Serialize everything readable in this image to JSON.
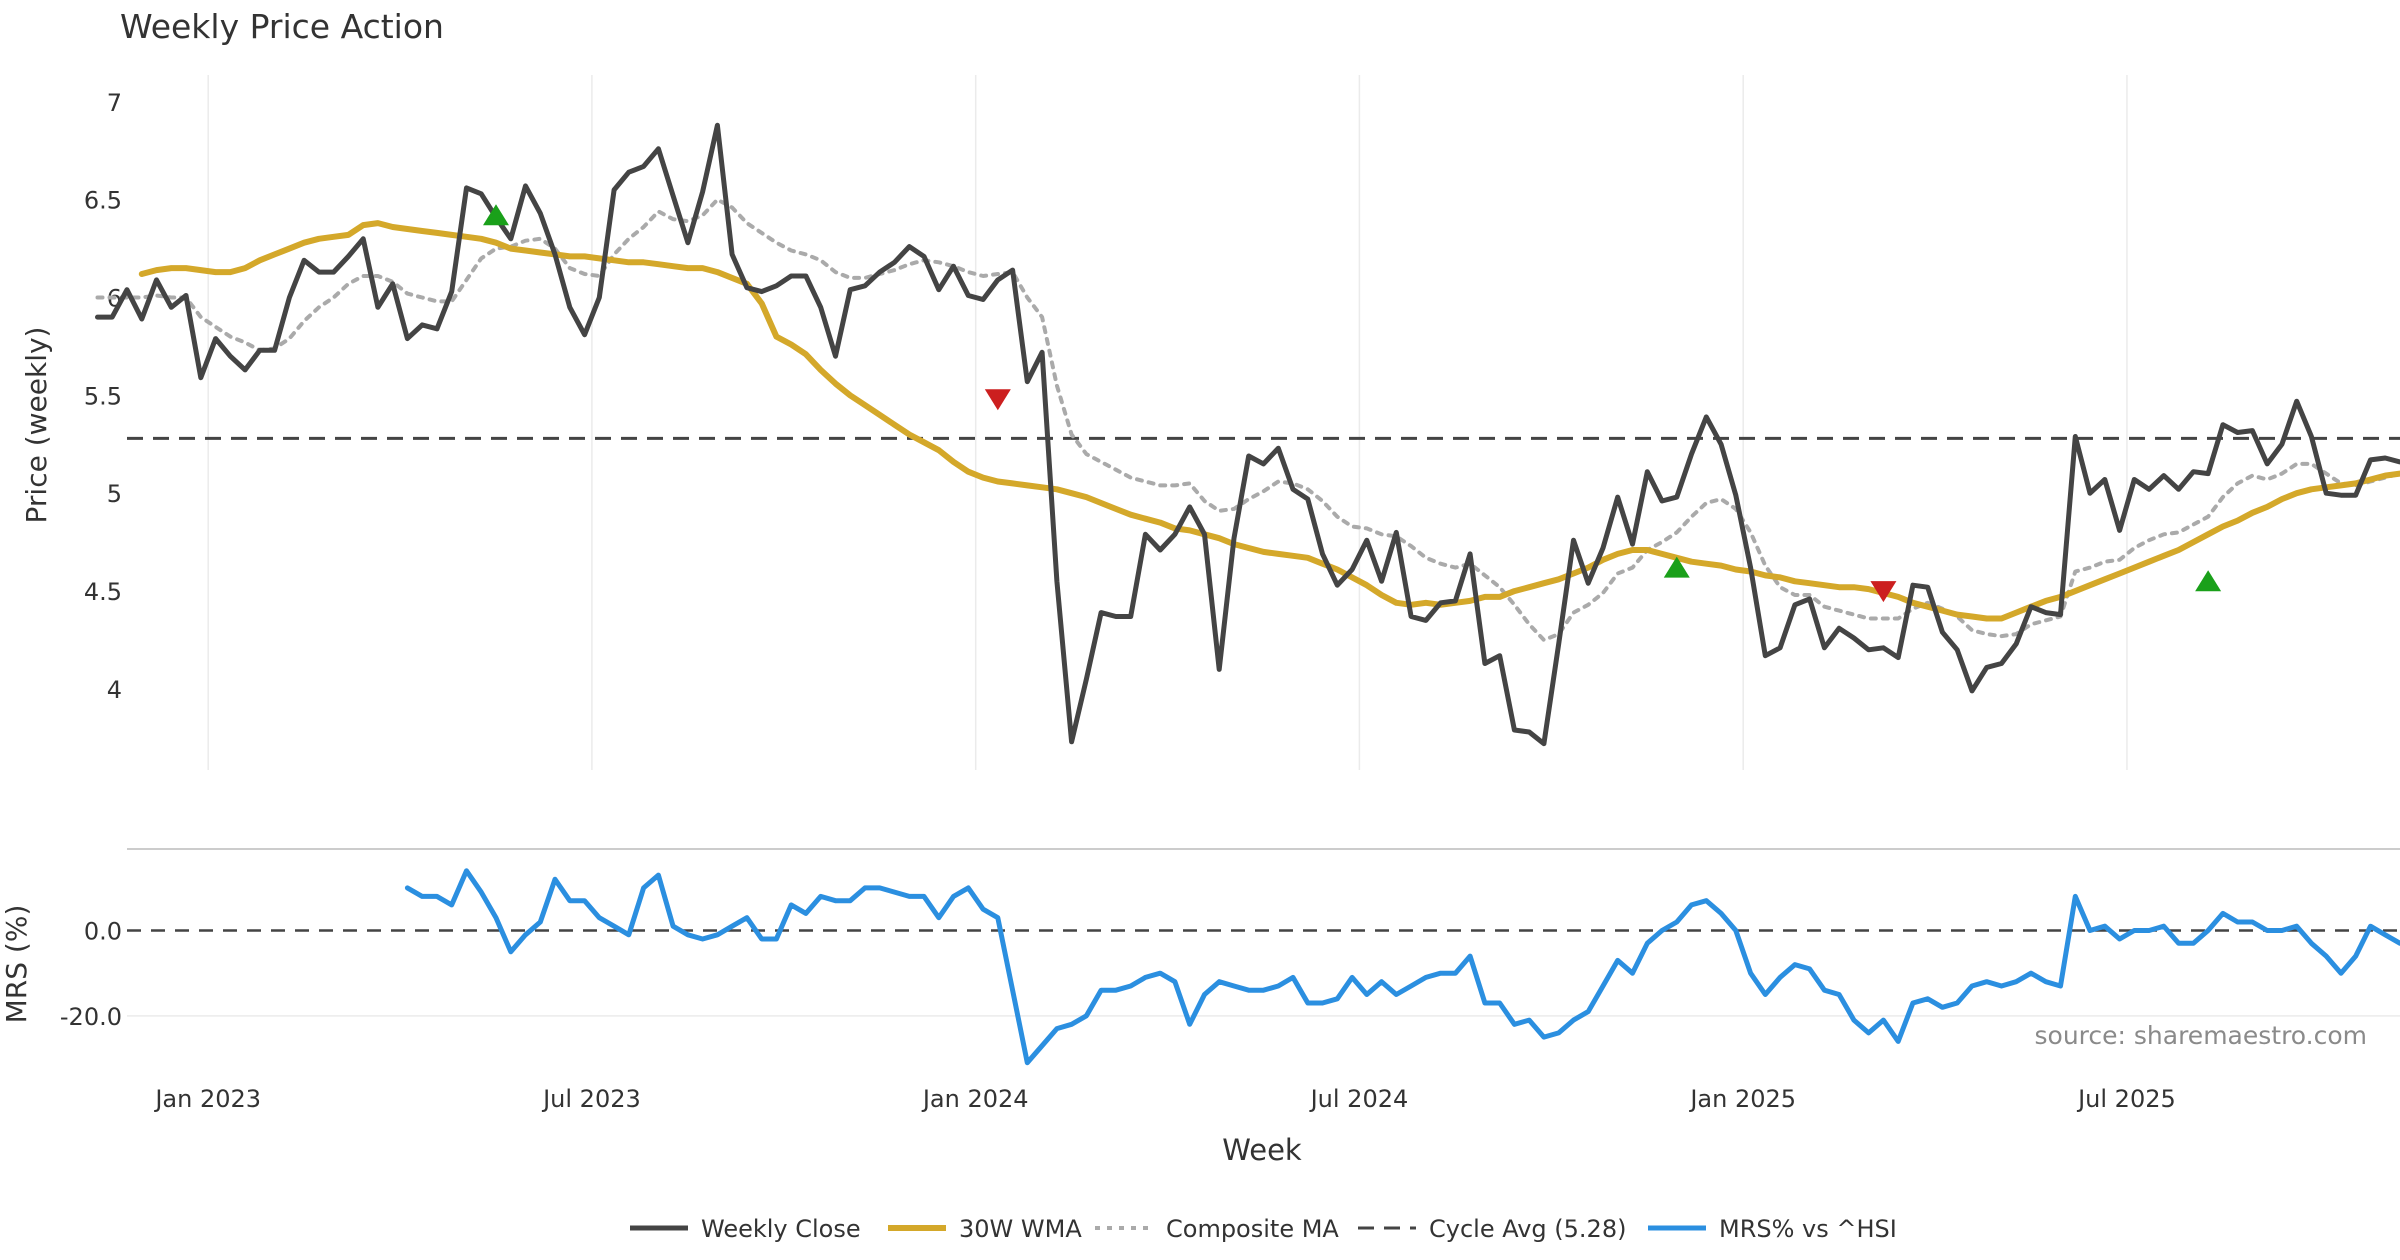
{
  "chart_data": {
    "type": "line",
    "title": "Weekly Price Action",
    "xlabel": "Week",
    "source_note": "source: sharemaestro.com",
    "x_ticks": [
      "Jan 2023",
      "Jul 2023",
      "Jan 2024",
      "Jul 2024",
      "Jan 2025",
      "Jul 2025"
    ],
    "price_panel": {
      "ylabel": "Price (weekly)",
      "y_ticks": [
        "4",
        "4.5",
        "5",
        "5.5",
        "6",
        "6.5",
        "7"
      ],
      "ylim": [
        3.55,
        7.05
      ],
      "cycle_avg": 5.28,
      "series": [
        {
          "name": "Weekly Close",
          "color": "#444444",
          "values": [
            5.9,
            5.9,
            6.04,
            5.89,
            6.09,
            5.95,
            6.01,
            5.59,
            5.79,
            5.7,
            5.63,
            5.73,
            5.73,
            6.0,
            6.19,
            6.13,
            6.13,
            6.21,
            6.3,
            5.95,
            6.07,
            5.79,
            5.86,
            5.84,
            6.03,
            6.56,
            6.53,
            6.41,
            6.3,
            6.57,
            6.43,
            6.22,
            5.95,
            5.81,
            6.0,
            6.55,
            6.64,
            6.67,
            6.76,
            6.52,
            6.28,
            6.54,
            6.88,
            6.22,
            6.05,
            6.03,
            6.06,
            6.11,
            6.11,
            5.95,
            5.7,
            6.04,
            6.06,
            6.13,
            6.18,
            6.26,
            6.21,
            6.04,
            6.16,
            6.01,
            5.99,
            6.09,
            6.14,
            5.57,
            5.72,
            4.55,
            3.73,
            4.05,
            4.39,
            4.37,
            4.37,
            4.79,
            4.71,
            4.79,
            4.93,
            4.79,
            4.1,
            4.77,
            5.19,
            5.15,
            5.23,
            5.02,
            4.97,
            4.69,
            4.53,
            4.61,
            4.76,
            4.55,
            4.8,
            4.37,
            4.35,
            4.44,
            4.45,
            4.69,
            4.13,
            4.17,
            3.79,
            3.78,
            3.72,
            4.23,
            4.76,
            4.54,
            4.72,
            4.98,
            4.74,
            5.11,
            4.96,
            4.98,
            5.2,
            5.39,
            5.25,
            4.99,
            4.62,
            4.17,
            4.21,
            4.43,
            4.46,
            4.21,
            4.31,
            4.26,
            4.2,
            4.21,
            4.16,
            4.53,
            4.52,
            4.29,
            4.2,
            3.99,
            4.11,
            4.13,
            4.23,
            4.42,
            4.39,
            4.38,
            5.29,
            5.0,
            5.07,
            4.81,
            5.07,
            5.02,
            5.09,
            5.02,
            5.11,
            5.1,
            5.35,
            5.31,
            5.32,
            5.15,
            5.25,
            5.47,
            5.29,
            5.0,
            4.99,
            4.99,
            5.17,
            5.18,
            5.16
          ]
        },
        {
          "name": "30W WMA",
          "color": "#d4a82a",
          "values": [
            6.12,
            6.14,
            6.15,
            6.15,
            6.14,
            6.13,
            6.13,
            6.15,
            6.19,
            6.22,
            6.25,
            6.28,
            6.3,
            6.31,
            6.32,
            6.37,
            6.38,
            6.36,
            6.35,
            6.34,
            6.33,
            6.32,
            6.31,
            6.3,
            6.28,
            6.25,
            6.24,
            6.23,
            6.22,
            6.21,
            6.21,
            6.2,
            6.19,
            6.18,
            6.18,
            6.17,
            6.16,
            6.15,
            6.15,
            6.13,
            6.1,
            6.07,
            5.97,
            5.8,
            5.76,
            5.71,
            5.63,
            5.56,
            5.5,
            5.45,
            5.4,
            5.35,
            5.3,
            5.26,
            5.22,
            5.16,
            5.11,
            5.08,
            5.06,
            5.05,
            5.04,
            5.03,
            5.02,
            5.0,
            4.98,
            4.95,
            4.92,
            4.89,
            4.87,
            4.85,
            4.82,
            4.81,
            4.79,
            4.77,
            4.74,
            4.72,
            4.7,
            4.69,
            4.68,
            4.67,
            4.64,
            4.61,
            4.57,
            4.53,
            4.48,
            4.44,
            4.43,
            4.44,
            4.43,
            4.44,
            4.45,
            4.47,
            4.47,
            4.5,
            4.52,
            4.54,
            4.56,
            4.59,
            4.62,
            4.66,
            4.69,
            4.71,
            4.71,
            4.69,
            4.67,
            4.65,
            4.64,
            4.63,
            4.61,
            4.6,
            4.58,
            4.57,
            4.55,
            4.54,
            4.53,
            4.52,
            4.52,
            4.51,
            4.49,
            4.47,
            4.44,
            4.42,
            4.4,
            4.38,
            4.37,
            4.36,
            4.36,
            4.39,
            4.42,
            4.45,
            4.47,
            4.5,
            4.53,
            4.56,
            4.59,
            4.62,
            4.65,
            4.68,
            4.71,
            4.75,
            4.79,
            4.83,
            4.86,
            4.9,
            4.93,
            4.97,
            5.0,
            5.02,
            5.03,
            5.04,
            5.05,
            5.07,
            5.09,
            5.1
          ]
        },
        {
          "name": "Composite MA",
          "color": "#aaaaaa",
          "values": [
            6.0,
            6.0,
            6.0,
            6.0,
            6.01,
            6.0,
            6.0,
            5.9,
            5.85,
            5.8,
            5.77,
            5.73,
            5.74,
            5.79,
            5.88,
            5.95,
            6.0,
            6.07,
            6.11,
            6.11,
            6.08,
            6.02,
            6.0,
            5.98,
            5.98,
            6.09,
            6.2,
            6.25,
            6.26,
            6.29,
            6.3,
            6.25,
            6.15,
            6.12,
            6.11,
            6.22,
            6.3,
            6.36,
            6.44,
            6.4,
            6.39,
            6.42,
            6.5,
            6.46,
            6.38,
            6.33,
            6.28,
            6.24,
            6.22,
            6.19,
            6.13,
            6.1,
            6.1,
            6.12,
            6.14,
            6.17,
            6.19,
            6.18,
            6.16,
            6.13,
            6.11,
            6.12,
            6.13,
            6.0,
            5.9,
            5.55,
            5.3,
            5.2,
            5.16,
            5.12,
            5.08,
            5.06,
            5.04,
            5.04,
            5.05,
            4.96,
            4.91,
            4.92,
            4.97,
            5.01,
            5.06,
            5.05,
            5.02,
            4.96,
            4.88,
            4.83,
            4.82,
            4.79,
            4.78,
            4.73,
            4.67,
            4.64,
            4.62,
            4.64,
            4.58,
            4.52,
            4.43,
            4.33,
            4.25,
            4.28,
            4.39,
            4.43,
            4.49,
            4.59,
            4.62,
            4.71,
            4.75,
            4.8,
            4.88,
            4.95,
            4.97,
            4.92,
            4.8,
            4.63,
            4.52,
            4.48,
            4.48,
            4.42,
            4.4,
            4.38,
            4.36,
            4.36,
            4.36,
            4.41,
            4.44,
            4.41,
            4.37,
            4.3,
            4.28,
            4.27,
            4.28,
            4.33,
            4.35,
            4.37,
            4.6,
            4.62,
            4.65,
            4.66,
            4.72,
            4.76,
            4.79,
            4.8,
            4.84,
            4.88,
            4.98,
            5.05,
            5.09,
            5.07,
            5.1,
            5.15,
            5.15,
            5.1,
            5.05,
            5.04,
            5.06,
            5.08,
            5.1
          ]
        }
      ],
      "signals": [
        {
          "type": "buy",
          "week": 25,
          "value": 6.42
        },
        {
          "type": "sell",
          "week": 59,
          "value": 5.48
        },
        {
          "type": "buy",
          "week": 105,
          "value": 4.62
        },
        {
          "type": "sell",
          "week": 119,
          "value": 4.5
        },
        {
          "type": "buy",
          "week": 141,
          "value": 4.55
        }
      ]
    },
    "mrs_panel": {
      "ylabel": "MRS (%)",
      "y_ticks": [
        "-20.0",
        "0.0"
      ],
      "ylim": [
        -32,
        17
      ],
      "zero_line": 0,
      "series": [
        {
          "name": "MRS% vs ^HSI",
          "color": "#2b8fe0",
          "values": [
            10,
            8,
            8,
            6,
            14,
            9,
            3,
            -5,
            -1,
            2,
            12,
            7,
            7,
            3,
            1,
            -1,
            10,
            13,
            1,
            -1,
            -2,
            -1,
            1,
            3,
            -2,
            -2,
            6,
            4,
            8,
            7,
            7,
            10,
            10,
            9,
            8,
            8,
            3,
            8,
            10,
            5,
            3,
            -14,
            -31,
            -27,
            -23,
            -22,
            -20,
            -14,
            -14,
            -13,
            -11,
            -10,
            -12,
            -22,
            -15,
            -12,
            -13,
            -14,
            -14,
            -13,
            -11,
            -17,
            -17,
            -16,
            -11,
            -15,
            -12,
            -15,
            -13,
            -11,
            -10,
            -10,
            -6,
            -17,
            -17,
            -22,
            -21,
            -25,
            -24,
            -21,
            -19,
            -13,
            -7,
            -10,
            -3,
            0,
            2,
            6,
            7,
            4,
            0,
            -10,
            -15,
            -11,
            -8,
            -9,
            -14,
            -15,
            -21,
            -24,
            -21,
            -26,
            -17,
            -16,
            -18,
            -17,
            -13,
            -12,
            -13,
            -12,
            -10,
            -12,
            -13,
            8,
            0,
            1,
            -2,
            0,
            0,
            1,
            -3,
            -3,
            0,
            4,
            2,
            2,
            0,
            0,
            1,
            -3,
            -6,
            -10,
            -6,
            1,
            -1,
            -3
          ]
        }
      ]
    },
    "legend": [
      "Weekly Close",
      "30W WMA",
      "Composite MA",
      "Cycle Avg (5.28)",
      "MRS% vs ^HSI"
    ]
  }
}
